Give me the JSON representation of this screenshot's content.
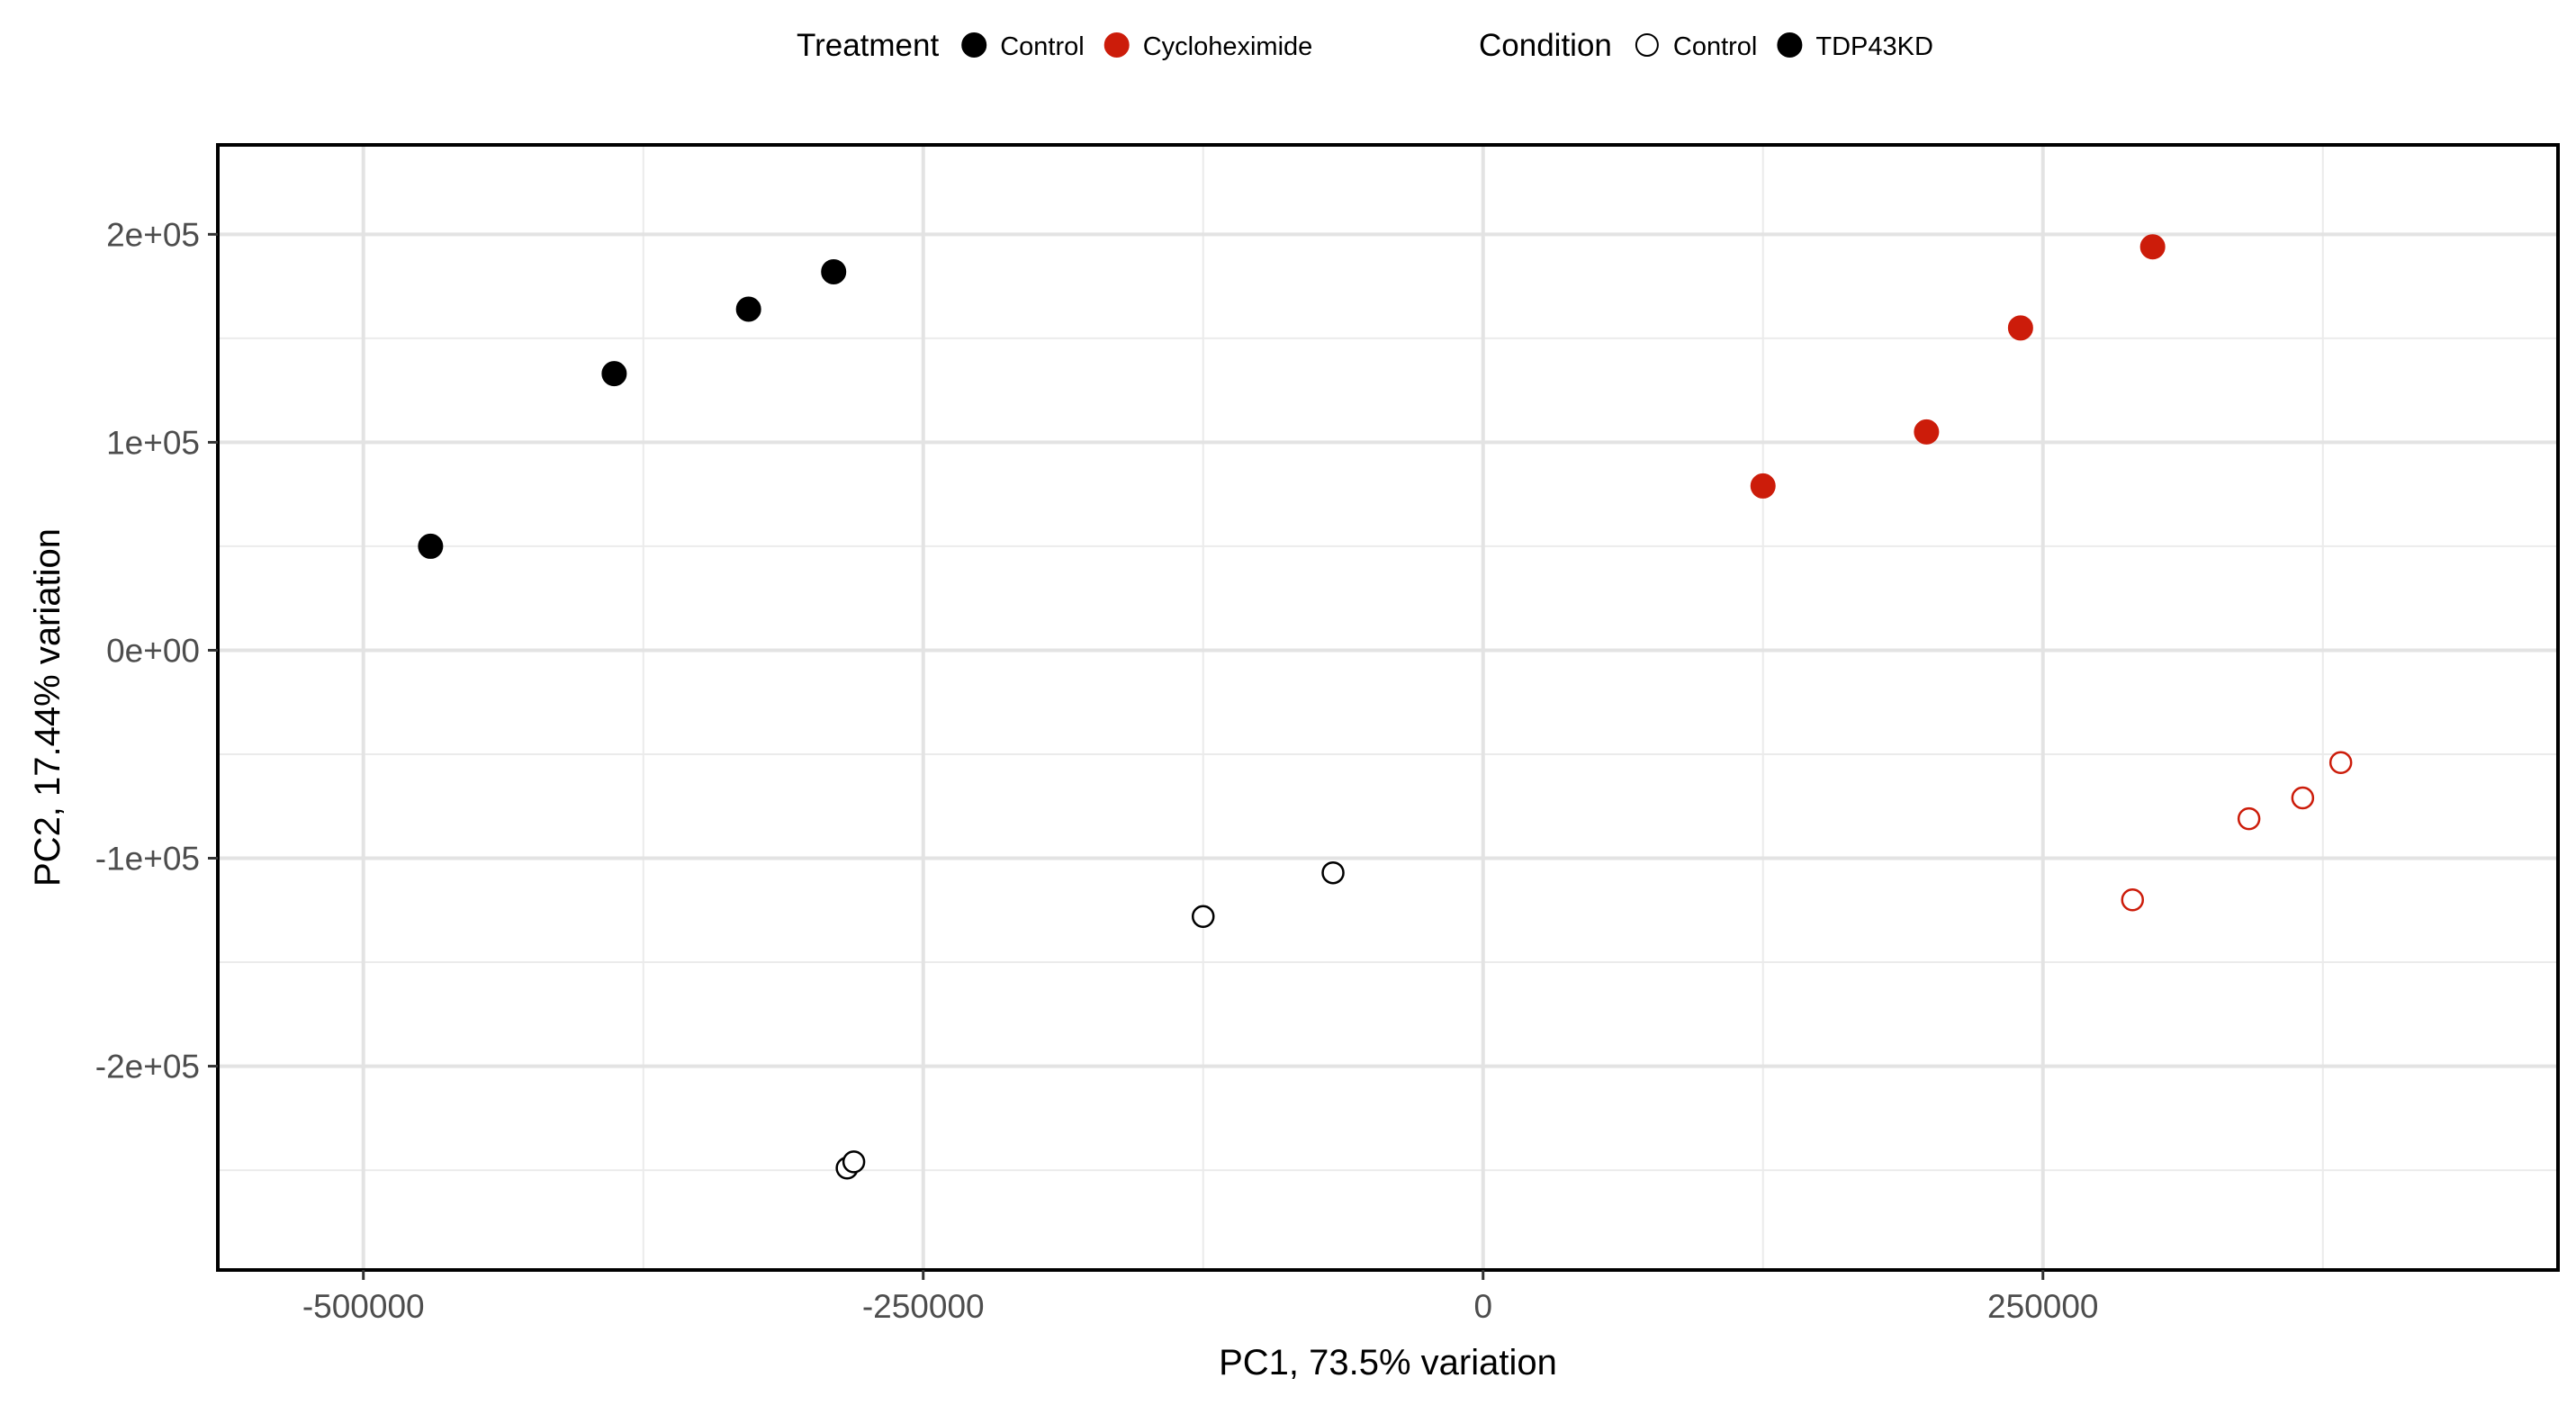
{
  "chart_data": {
    "type": "scatter",
    "title": "",
    "xlabel": "PC1, 73.5% variation",
    "ylabel": "PC2, 17.44% variation",
    "xlim": [
      -565000,
      480000
    ],
    "ylim": [
      -298000,
      243000
    ],
    "x_ticks": [
      {
        "value": -500000,
        "label": "-500000"
      },
      {
        "value": -250000,
        "label": "-250000"
      },
      {
        "value": 0,
        "label": "0"
      },
      {
        "value": 250000,
        "label": "250000"
      }
    ],
    "y_ticks": [
      {
        "value": 200000,
        "label": "2e+05"
      },
      {
        "value": 100000,
        "label": "1e+05"
      },
      {
        "value": 0,
        "label": "0e+00"
      },
      {
        "value": -100000,
        "label": "-1e+05"
      },
      {
        "value": -200000,
        "label": "-2e+05"
      }
    ],
    "grid": true,
    "legend": {
      "placement": "top",
      "groups": [
        {
          "title": "Treatment",
          "items": [
            {
              "label": "Control",
              "color": "#000000",
              "fill": "filled"
            },
            {
              "label": "Cycloheximide",
              "color": "#cc1c0a",
              "fill": "filled"
            }
          ]
        },
        {
          "title": "Condition",
          "items": [
            {
              "label": "Control",
              "color": "#000000",
              "fill": "open"
            },
            {
              "label": "TDP43KD",
              "color": "#000000",
              "fill": "filled"
            }
          ]
        }
      ]
    },
    "colors": {
      "Control": "#000000",
      "Cycloheximide": "#cc1c0a"
    },
    "series": [
      {
        "treatment": "Control",
        "condition": "TDP43KD",
        "points": [
          [
            -470000,
            50000
          ],
          [
            -388000,
            133000
          ],
          [
            -328000,
            164000
          ],
          [
            -290000,
            182000
          ]
        ]
      },
      {
        "treatment": "Control",
        "condition": "Control",
        "points": [
          [
            -125000,
            -128000
          ],
          [
            -67000,
            -107000
          ],
          [
            -284000,
            -249000
          ],
          [
            -281000,
            -246000
          ]
        ]
      },
      {
        "treatment": "Cycloheximide",
        "condition": "TDP43KD",
        "points": [
          [
            125000,
            79000
          ],
          [
            198000,
            105000
          ],
          [
            240000,
            155000
          ],
          [
            299000,
            194000
          ]
        ]
      },
      {
        "treatment": "Cycloheximide",
        "condition": "Control",
        "points": [
          [
            290000,
            -120000
          ],
          [
            342000,
            -81000
          ],
          [
            366000,
            -71000
          ],
          [
            383000,
            -54000
          ]
        ]
      }
    ]
  }
}
